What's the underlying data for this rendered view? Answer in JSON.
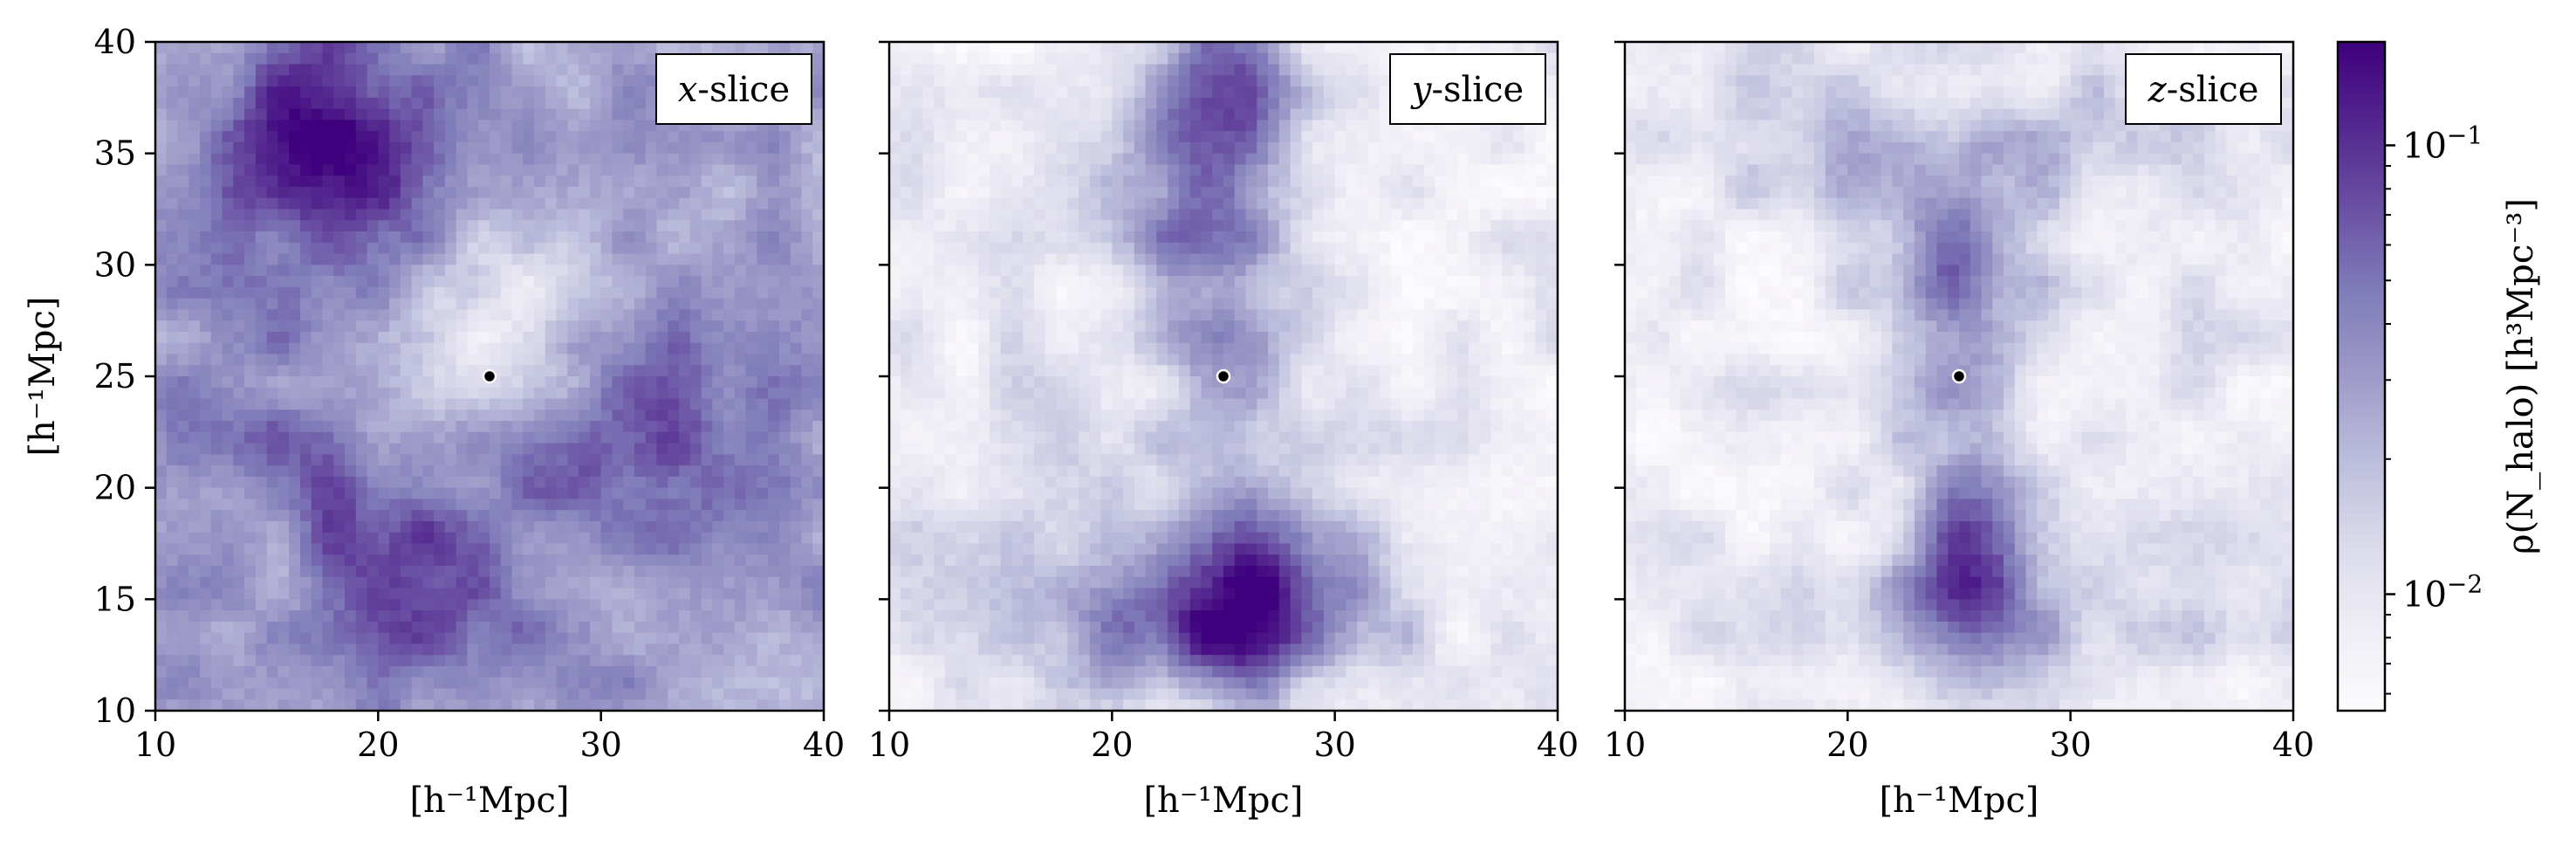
{
  "chart_data": {
    "type": "heatmap",
    "colormap": "Purples",
    "log_scale": true,
    "color_range": [
      0.0055,
      0.17
    ],
    "colorbar": {
      "label": "ρ(N_halo)  [h³Mpc⁻³]",
      "ticks": [
        {
          "value": 0.1,
          "base": "10",
          "exp": "−1"
        },
        {
          "value": 0.01,
          "base": "10",
          "exp": "−2"
        }
      ],
      "minor_ticks": [
        0.006,
        0.007,
        0.008,
        0.009,
        0.02,
        0.03,
        0.04,
        0.05,
        0.06,
        0.07,
        0.08,
        0.09
      ]
    },
    "marker": {
      "x": 25,
      "y": 25
    },
    "xlim": [
      10,
      40
    ],
    "ylim": [
      10,
      40
    ],
    "xticks": [
      10,
      20,
      30,
      40
    ],
    "yticks": [
      10,
      15,
      20,
      25,
      30,
      35,
      40
    ],
    "xlabel": "[h⁻¹Mpc]",
    "ylabel": "[h⁻¹Mpc]",
    "panels": [
      {
        "label": "x-slice",
        "background": 0.028,
        "blobs": [
          {
            "x": 19,
            "y": 33,
            "value": 0.085,
            "sx": 3.5,
            "sy": 4.5
          },
          {
            "x": 17,
            "y": 37,
            "value": 0.07,
            "sx": 3,
            "sy": 3
          },
          {
            "x": 14,
            "y": 22,
            "value": 0.055,
            "sx": 3,
            "sy": 2
          },
          {
            "x": 19.5,
            "y": 18,
            "value": 0.07,
            "sx": 2.5,
            "sy": 2.5
          },
          {
            "x": 23,
            "y": 14,
            "value": 0.065,
            "sx": 3,
            "sy": 2.5
          },
          {
            "x": 30,
            "y": 21,
            "value": 0.055,
            "sx": 4,
            "sy": 3
          },
          {
            "x": 33,
            "y": 24,
            "value": 0.045,
            "sx": 3,
            "sy": 4
          },
          {
            "x": 24.5,
            "y": 26.5,
            "value": 0.011,
            "sx": 3,
            "sy": 3
          },
          {
            "x": 27,
            "y": 30,
            "value": 0.016,
            "sx": 3,
            "sy": 2
          },
          {
            "x": 36,
            "y": 14,
            "value": 0.03,
            "sx": 4,
            "sy": 3
          },
          {
            "x": 13,
            "y": 12,
            "value": 0.035,
            "sx": 3,
            "sy": 2
          }
        ]
      },
      {
        "label": "y-slice",
        "background": 0.0085,
        "blobs": [
          {
            "x": 25,
            "y": 38,
            "value": 0.06,
            "sx": 2.5,
            "sy": 2.5
          },
          {
            "x": 24.5,
            "y": 31,
            "value": 0.04,
            "sx": 2.5,
            "sy": 3.5
          },
          {
            "x": 25.5,
            "y": 17,
            "value": 0.07,
            "sx": 2.5,
            "sy": 2.5
          },
          {
            "x": 25,
            "y": 13,
            "value": 0.045,
            "sx": 3,
            "sy": 2
          },
          {
            "x": 20,
            "y": 14,
            "value": 0.025,
            "sx": 3,
            "sy": 2
          },
          {
            "x": 30,
            "y": 15,
            "value": 0.022,
            "sx": 3,
            "sy": 3
          },
          {
            "x": 25,
            "y": 24,
            "value": 0.02,
            "sx": 2,
            "sy": 3
          },
          {
            "x": 15,
            "y": 20,
            "value": 0.012,
            "sx": 4,
            "sy": 4
          },
          {
            "x": 22,
            "y": 35,
            "value": 0.016,
            "sx": 3,
            "sy": 3
          }
        ]
      },
      {
        "label": "z-slice",
        "background": 0.009,
        "blobs": [
          {
            "x": 25,
            "y": 31,
            "value": 0.05,
            "sx": 2.5,
            "sy": 3
          },
          {
            "x": 25.5,
            "y": 18,
            "value": 0.055,
            "sx": 2,
            "sy": 3
          },
          {
            "x": 25,
            "y": 14,
            "value": 0.028,
            "sx": 3,
            "sy": 2
          },
          {
            "x": 20,
            "y": 35,
            "value": 0.018,
            "sx": 4,
            "sy": 2
          },
          {
            "x": 31,
            "y": 36,
            "value": 0.016,
            "sx": 4,
            "sy": 2
          },
          {
            "x": 25,
            "y": 25,
            "value": 0.02,
            "sx": 2,
            "sy": 3
          },
          {
            "x": 32,
            "y": 16,
            "value": 0.016,
            "sx": 4,
            "sy": 3
          },
          {
            "x": 14,
            "y": 38,
            "value": 0.012,
            "sx": 3,
            "sy": 2
          }
        ]
      }
    ]
  }
}
